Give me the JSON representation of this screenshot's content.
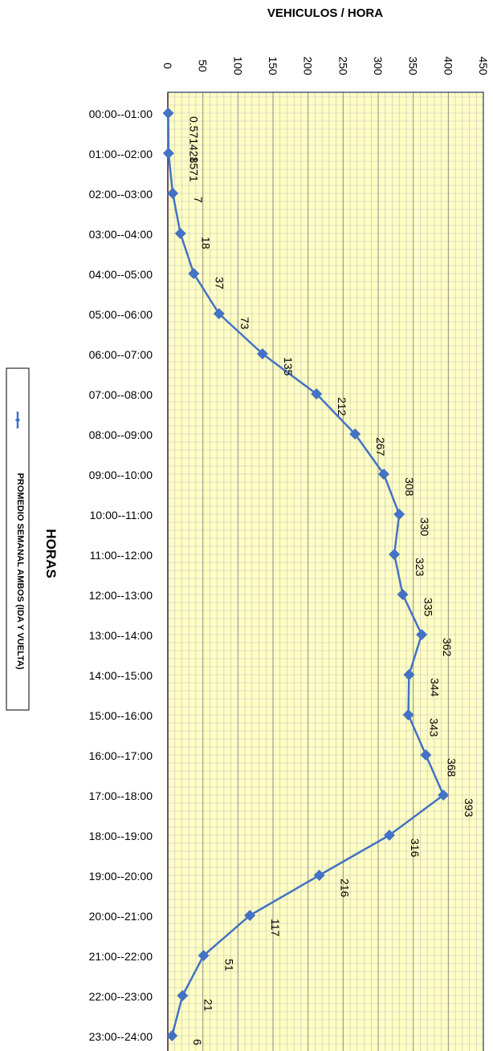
{
  "chart_data": {
    "type": "line",
    "title": "",
    "xlabel": "HORAS",
    "ylabel": "VEHICULOS / HORA",
    "ylim": [
      0,
      450
    ],
    "y_ticks": [
      0,
      50,
      100,
      150,
      200,
      250,
      300,
      350,
      400,
      450
    ],
    "y_tick_labels": [
      "0",
      "50",
      "100",
      "150",
      "200",
      "250",
      "300",
      "350",
      "400",
      "450"
    ],
    "grid": true,
    "legend_position": "left",
    "categories": [
      "00:00--01:00",
      "01:00--02:00",
      "02:00--03:00",
      "03:00--04:00",
      "04:00--05:00",
      "05:00--06:00",
      "06:00--07:00",
      "07:00--08:00",
      "08:00--09:00",
      "09:00--10:00",
      "10:00--11:00",
      "11:00--12:00",
      "12:00--13:00",
      "13:00--14:00",
      "14:00--15:00",
      "15:00--16:00",
      "16:00--17:00",
      "17:00--18:00",
      "18:00--19:00",
      "19:00--20:00",
      "20:00--21:00",
      "21:00--22:00",
      "22:00--23:00",
      "23:00--24:00"
    ],
    "series": [
      {
        "name": "PROMEDIO SEMANAL AMBOS (IDA Y VUELTA)",
        "color": "#4472C4",
        "values": [
          0.571428571,
          1,
          7,
          18,
          37,
          73,
          135,
          212,
          267,
          308,
          330,
          323,
          335,
          362,
          344,
          343,
          368,
          393,
          316,
          216,
          117,
          51,
          21,
          6
        ],
        "data_labels": [
          "0.571428571",
          "1",
          "7",
          "18",
          "37",
          "73",
          "135",
          "212",
          "267",
          "308",
          "330",
          "323",
          "335",
          "362",
          "344",
          "343",
          "368",
          "393",
          "316",
          "216",
          "117",
          "51",
          "21",
          "6"
        ]
      }
    ],
    "colors": {
      "plot_background": "#FFFFC4",
      "gridline": "#BFBFBF",
      "zero_line": "#C00000",
      "border": "#1F3864"
    }
  }
}
